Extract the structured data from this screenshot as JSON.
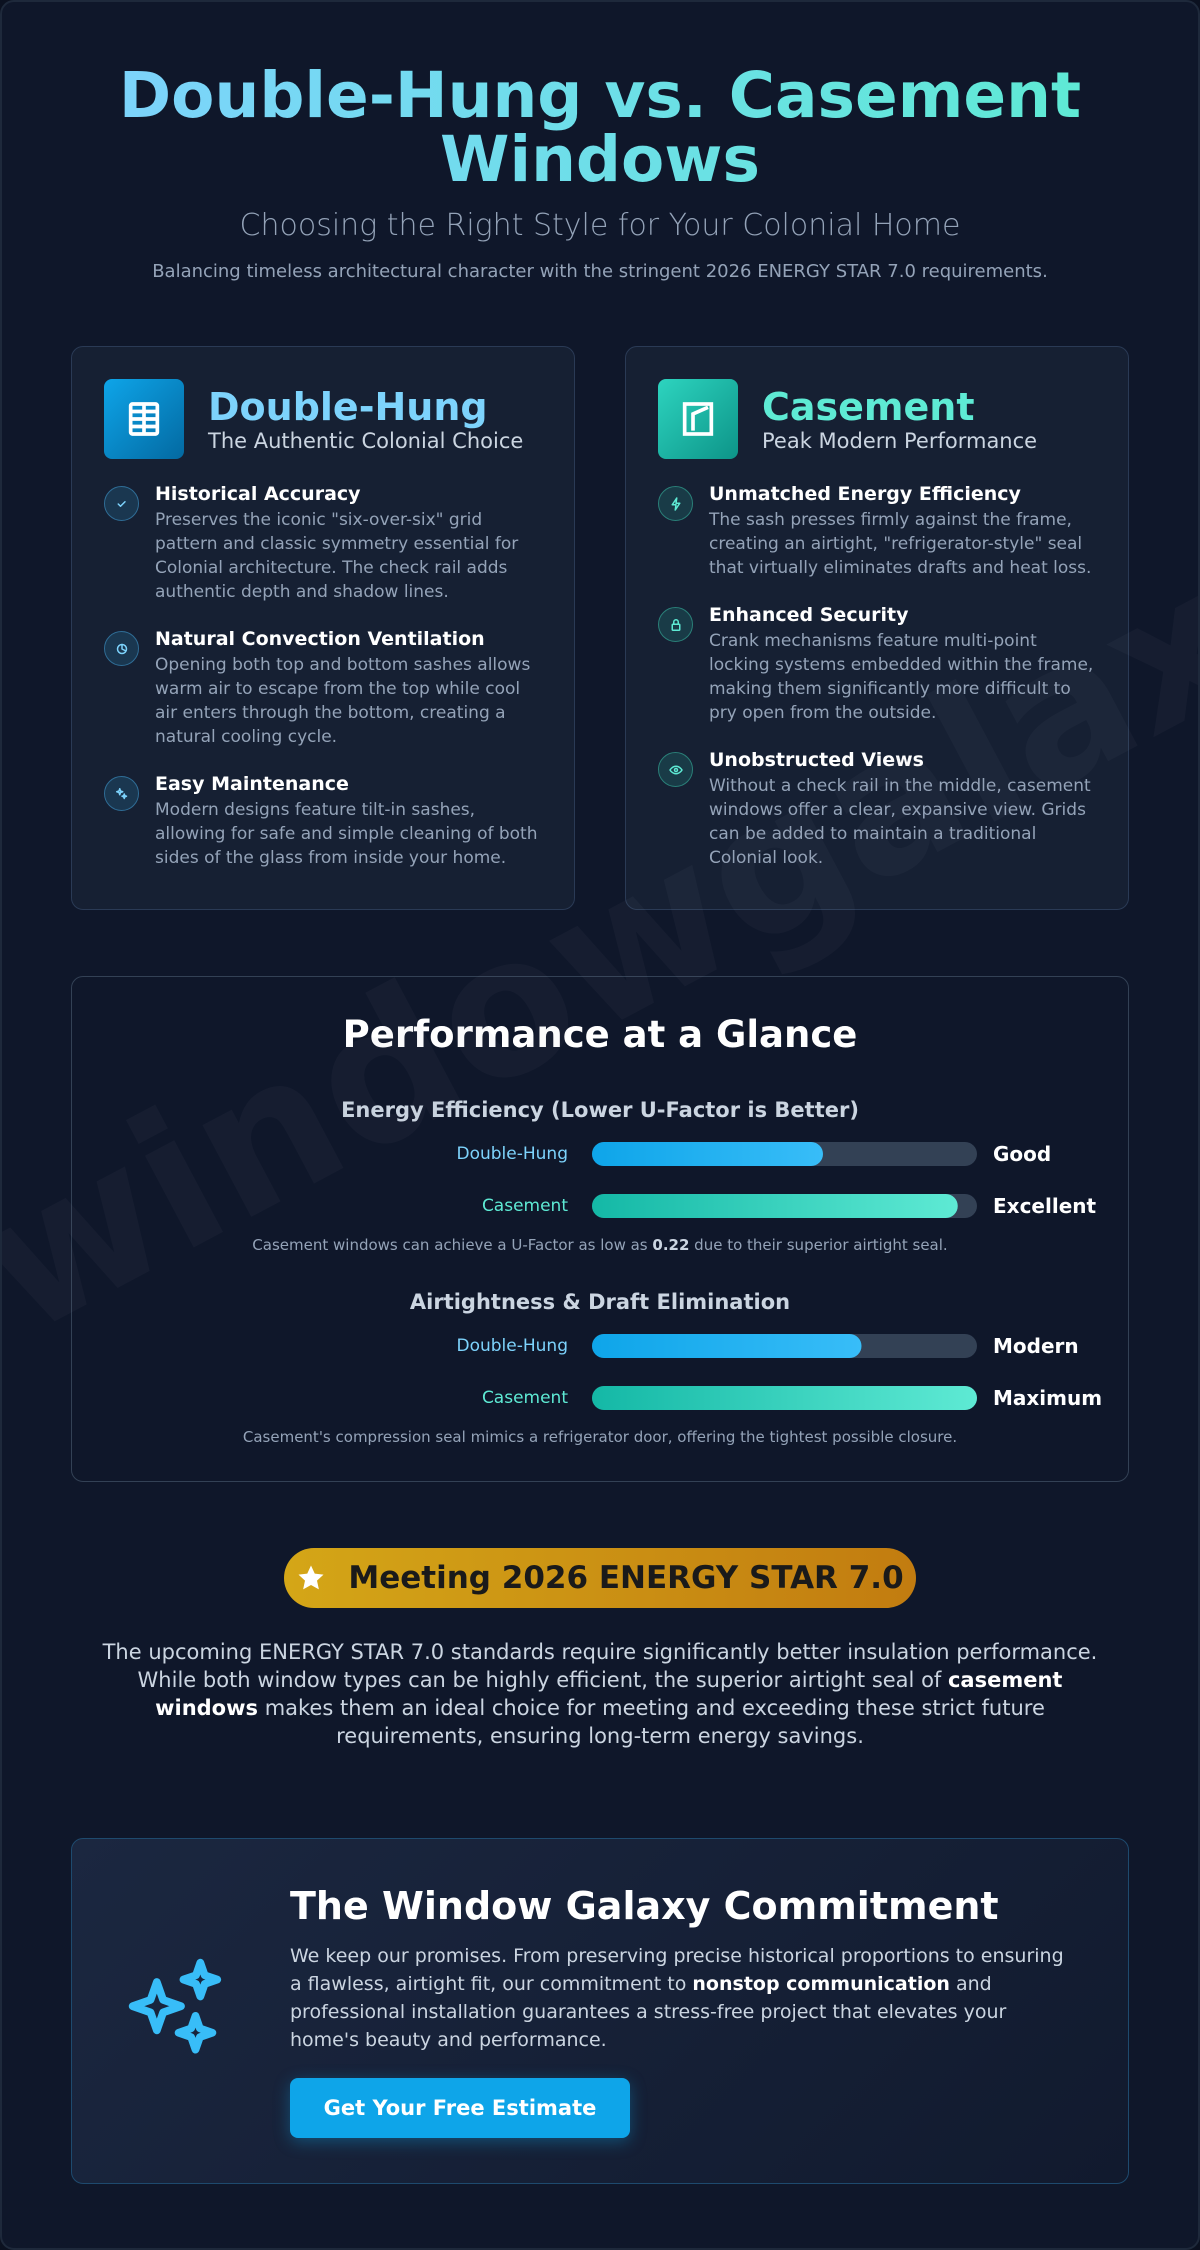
{
  "header": {
    "title": "Double-Hung vs. Casement Windows",
    "subtitle": "Choosing the Right Style for Your Colonial Home",
    "tagline": "Balancing timeless architectural character with the stringent 2026 ENERGY STAR 7.0 requirements."
  },
  "cards": [
    {
      "name": "Double-Hung",
      "tagline": "The Authentic Colonial Choice",
      "features": [
        {
          "title": "Historical Accuracy",
          "text": "Preserves the iconic \"six-over-six\" grid pattern and classic symmetry essential for Colonial architecture. The check rail adds authentic depth and shadow lines."
        },
        {
          "title": "Natural Convection Ventilation",
          "text": "Opening both top and bottom sashes allows warm air to escape from the top while cool air enters through the bottom, creating a natural cooling cycle."
        },
        {
          "title": "Easy Maintenance",
          "text": "Modern designs feature tilt-in sashes, allowing for safe and simple cleaning of both sides of the glass from inside your home."
        }
      ]
    },
    {
      "name": "Casement",
      "tagline": "Peak Modern Performance",
      "features": [
        {
          "title": "Unmatched Energy Efficiency",
          "text": "The sash presses firmly against the frame, creating an airtight, \"refrigerator-style\" seal that virtually eliminates drafts and heat loss."
        },
        {
          "title": "Enhanced Security",
          "text": "Crank mechanisms feature multi-point locking systems embedded within the frame, making them significantly more difficult to pry open from the outside."
        },
        {
          "title": "Unobstructed Views",
          "text": "Without a check rail in the middle, casement windows offer a clear, expansive view. Grids can be added to maintain a traditional Colonial look."
        }
      ]
    }
  ],
  "performance": {
    "title": "Performance at a Glance",
    "metrics": [
      {
        "title": "Energy Efficiency (Lower U-Factor is Better)",
        "rows": [
          {
            "label": "Double-Hung",
            "value": 60,
            "rating": "Good"
          },
          {
            "label": "Casement",
            "value": 95,
            "rating": "Excellent"
          }
        ],
        "note": [
          "Casement windows can achieve a U-Factor as low as ",
          "0.22",
          " due to their superior airtight seal."
        ]
      },
      {
        "title": "Airtightness & Draft Elimination",
        "rows": [
          {
            "label": "Double-Hung",
            "value": 70,
            "rating": "Modern"
          },
          {
            "label": "Casement",
            "value": 100,
            "rating": "Maximum"
          }
        ],
        "note": [
          "Casement's compression seal mimics a refrigerator door, offering the tightest possible closure."
        ]
      }
    ]
  },
  "energy_star": {
    "badge": "Meeting 2026 ENERGY STAR 7.0",
    "text": [
      "The upcoming ENERGY STAR 7.0 standards require significantly better insulation performance. While both window types can be highly efficient, the superior airtight seal of ",
      "casement windows",
      " makes them an ideal choice for meeting and exceeding these strict future requirements, ensuring long-term energy savings."
    ]
  },
  "commitment": {
    "title": "The Window Galaxy Commitment",
    "text": [
      "We keep our promises. From preserving precise historical proportions to ensuring a flawless, airtight fit, our commitment to ",
      "nonstop communication",
      " and professional installation guarantees a stress-free project that elevates your home's beauty and performance."
    ],
    "button": "Get Your Free Estimate"
  },
  "watermark": "windowgalaxy.com"
}
